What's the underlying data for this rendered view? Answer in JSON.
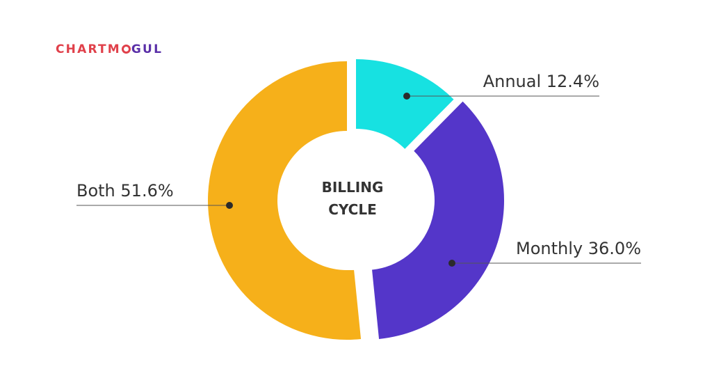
{
  "logo": {
    "part1": "CHARTM",
    "part2": "GUL"
  },
  "chart_data": {
    "type": "pie",
    "title": "",
    "center_label_lines": [
      "BILLING",
      "CYCLE"
    ],
    "slices": [
      {
        "label": "Annual",
        "value": 12.4,
        "display": "Annual 12.4%",
        "color": "#17e1e1"
      },
      {
        "label": "Monthly",
        "value": 36.0,
        "display": "Monthly 36.0%",
        "color": "#5436c9"
      },
      {
        "label": "Both",
        "value": 51.6,
        "display": "Both 51.6%",
        "color": "#f6b01a"
      }
    ]
  }
}
